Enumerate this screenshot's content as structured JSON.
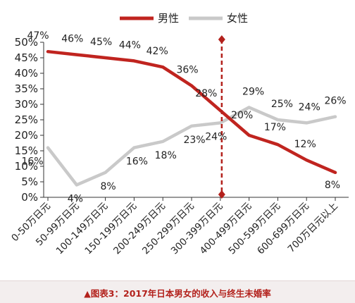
{
  "caption": "▲图表3：2017年日本男女的收入与终生未婚率",
  "chart_data": {
    "type": "line",
    "categories": [
      "0-50万日元",
      "50-99万日元",
      "100-149万日元",
      "150-199万日元",
      "200-249万日元",
      "250-299万日元",
      "300-399万日元",
      "400-499万日元",
      "500-599万日元",
      "600-699万日元",
      "700万日元以上"
    ],
    "series": [
      {
        "name": "男性",
        "color": "#c0241f",
        "values": [
          47,
          46,
          45,
          44,
          42,
          36,
          28,
          20,
          17,
          12,
          8
        ]
      },
      {
        "name": "女性",
        "color": "#c9c9c9",
        "values": [
          16,
          4,
          8,
          16,
          18,
          23,
          24,
          29,
          25,
          24,
          26
        ]
      }
    ],
    "y_ticks": [
      "0%",
      "5%",
      "10%",
      "15%",
      "20%",
      "25%",
      "30%",
      "35%",
      "40%",
      "45%",
      "50%"
    ],
    "male_labels": [
      "47%",
      "46%",
      "45%",
      "44%",
      "42%",
      "36%",
      "28%",
      "20%",
      "17%",
      "12%",
      "8%"
    ],
    "female_labels": [
      "16%",
      "4%",
      "8%",
      "16%",
      "18%",
      "23%",
      "24%",
      "29%",
      "25%",
      "24%",
      "26%"
    ],
    "ylim": [
      0,
      50
    ],
    "legend_position": "top",
    "grid": false,
    "marker_line_category": "400-499万日元",
    "marker_color": "#b3211c"
  }
}
